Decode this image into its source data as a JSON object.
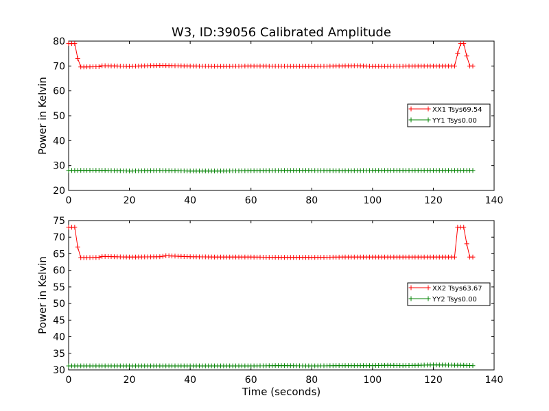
{
  "figure": {
    "title": "W3, ID:39056 Calibrated Amplitude",
    "xlabel": "Time (seconds)"
  },
  "chart_data": [
    {
      "type": "line",
      "xlabel": "",
      "ylabel": "Power in Kelvin",
      "xlim": [
        0,
        140
      ],
      "ylim": [
        20,
        80
      ],
      "x_ticks": [
        "0",
        "20",
        "40",
        "60",
        "80",
        "100",
        "120",
        "140"
      ],
      "y_ticks": [
        "20",
        "30",
        "40",
        "50",
        "60",
        "70",
        "80"
      ],
      "grid": false,
      "legend_position": "center-right",
      "series": [
        {
          "name": "XX1 Tsys69.54",
          "color": "#ff0000",
          "marker": "plus",
          "points": [
            [
              0,
              79
            ],
            [
              1,
              79
            ],
            [
              2,
              79
            ],
            [
              3,
              73
            ],
            [
              4,
              69.6
            ],
            [
              10,
              69.7
            ],
            [
              11,
              70.1
            ],
            [
              20,
              69.9
            ],
            [
              30,
              70.2
            ],
            [
              40,
              70
            ],
            [
              50,
              69.9
            ],
            [
              60,
              70
            ],
            [
              80,
              69.9
            ],
            [
              95,
              70.1
            ],
            [
              100,
              69.9
            ],
            [
              115,
              70
            ],
            [
              127,
              70
            ],
            [
              128,
              75
            ],
            [
              129,
              79
            ],
            [
              130,
              79
            ],
            [
              131,
              74
            ],
            [
              132,
              70
            ],
            [
              133,
              70
            ]
          ]
        },
        {
          "name": "YY1 Tsys0.00",
          "color": "#008000",
          "marker": "plus",
          "points": [
            [
              0,
              28
            ],
            [
              10,
              28.1
            ],
            [
              20,
              27.8
            ],
            [
              30,
              28
            ],
            [
              40,
              27.8
            ],
            [
              50,
              27.8
            ],
            [
              60,
              27.9
            ],
            [
              70,
              28
            ],
            [
              80,
              28
            ],
            [
              90,
              27.9
            ],
            [
              100,
              28
            ],
            [
              110,
              28
            ],
            [
              120,
              28
            ],
            [
              133,
              28
            ]
          ]
        }
      ]
    },
    {
      "type": "line",
      "xlabel": "Time (seconds)",
      "ylabel": "Power in Kelvin",
      "xlim": [
        0,
        140
      ],
      "ylim": [
        30,
        75
      ],
      "x_ticks": [
        "0",
        "20",
        "40",
        "60",
        "80",
        "100",
        "120",
        "140"
      ],
      "y_ticks": [
        "30",
        "35",
        "40",
        "45",
        "50",
        "55",
        "60",
        "65",
        "70",
        "75"
      ],
      "grid": false,
      "legend_position": "center-right",
      "series": [
        {
          "name": "XX2 Tsys63.67",
          "color": "#ff0000",
          "marker": "plus",
          "points": [
            [
              0,
              73
            ],
            [
              1,
              73
            ],
            [
              2,
              73
            ],
            [
              3,
              67
            ],
            [
              4,
              63.8
            ],
            [
              10,
              63.9
            ],
            [
              11,
              64.2
            ],
            [
              20,
              64
            ],
            [
              30,
              64.1
            ],
            [
              32,
              64.4
            ],
            [
              40,
              64.1
            ],
            [
              50,
              64
            ],
            [
              60,
              64
            ],
            [
              70,
              63.9
            ],
            [
              80,
              63.9
            ],
            [
              90,
              64
            ],
            [
              100,
              64
            ],
            [
              110,
              64
            ],
            [
              127,
              64
            ],
            [
              128,
              73
            ],
            [
              129,
              73
            ],
            [
              130,
              73
            ],
            [
              131,
              68
            ],
            [
              132,
              64
            ],
            [
              133,
              64
            ]
          ]
        },
        {
          "name": "YY2 Tsys0.00",
          "color": "#008000",
          "marker": "plus",
          "points": [
            [
              0,
              31.2
            ],
            [
              10,
              31.2
            ],
            [
              20,
              31.2
            ],
            [
              30,
              31.2
            ],
            [
              40,
              31.2
            ],
            [
              50,
              31.2
            ],
            [
              60,
              31.2
            ],
            [
              70,
              31.3
            ],
            [
              80,
              31.2
            ],
            [
              90,
              31.3
            ],
            [
              100,
              31.3
            ],
            [
              105,
              31.4
            ],
            [
              110,
              31.3
            ],
            [
              120,
              31.5
            ],
            [
              130,
              31.4
            ],
            [
              133,
              31.3
            ]
          ]
        }
      ]
    }
  ]
}
